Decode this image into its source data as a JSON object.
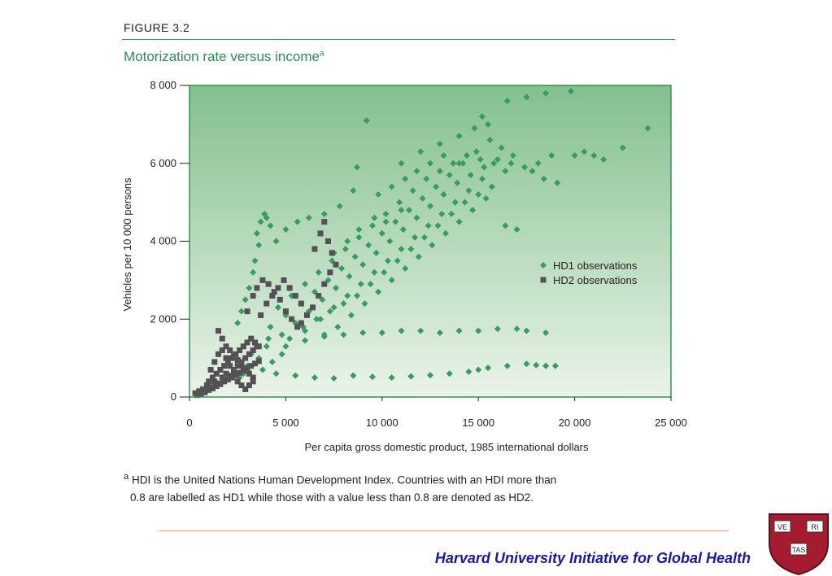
{
  "figure": {
    "label": "FIGURE 3.2",
    "title": "Motorization rate versus income",
    "title_marker": "a"
  },
  "footnote": {
    "marker": "a",
    "line1": "HDI is the United Nations Human Development Index. Countries with an HDI more than",
    "line2": "0.8 are labelled as HD1 while those with a value less than 0.8 are denoted as HD2."
  },
  "brand": "Harvard University Initiative for Global Health",
  "logo": {
    "shield_words": [
      "VE",
      "RI",
      "TAS"
    ]
  },
  "colors": {
    "hd1": "#3a9a62",
    "hd2": "#555055",
    "plot_bg_top": "#82c08e",
    "plot_bg_bottom": "#eaf4e8",
    "frame": "#3a8f5c"
  },
  "chart_data": {
    "type": "scatter",
    "xlabel": "Per capita gross domestic product, 1985 international dollars",
    "ylabel": "Vehicles per 10 000 persons",
    "xlim": [
      0,
      25000
    ],
    "ylim": [
      0,
      8000
    ],
    "xticks": [
      0,
      5000,
      10000,
      15000,
      20000,
      25000
    ],
    "xtick_labels": [
      "0",
      "5 000",
      "10 000",
      "15 000",
      "20 000",
      "25 000"
    ],
    "yticks": [
      0,
      2000,
      4000,
      6000,
      8000
    ],
    "ytick_labels": [
      "0",
      "2 000",
      "4 000",
      "6 000",
      "8 000"
    ],
    "grid": false,
    "legend_position": "right-middle",
    "series": [
      {
        "name": "HD1 observations",
        "marker": "diamond",
        "points": [
          [
            3500,
            4200
          ],
          [
            3700,
            4500
          ],
          [
            3900,
            4700
          ],
          [
            4000,
            4600
          ],
          [
            4200,
            4400
          ],
          [
            3600,
            3900
          ],
          [
            3400,
            3500
          ],
          [
            3300,
            3200
          ],
          [
            3100,
            2800
          ],
          [
            2900,
            2500
          ],
          [
            2700,
            2200
          ],
          [
            2500,
            1900
          ],
          [
            4500,
            4000
          ],
          [
            5000,
            4300
          ],
          [
            5600,
            4500
          ],
          [
            6200,
            4600
          ],
          [
            7000,
            4700
          ],
          [
            7800,
            4900
          ],
          [
            8500,
            5300
          ],
          [
            9200,
            7100
          ],
          [
            8700,
            5900
          ],
          [
            4200,
            1800
          ],
          [
            5000,
            2100
          ],
          [
            5800,
            2400
          ],
          [
            6500,
            2700
          ],
          [
            7200,
            3000
          ],
          [
            7900,
            3300
          ],
          [
            8600,
            3600
          ],
          [
            9300,
            3900
          ],
          [
            10000,
            4200
          ],
          [
            10700,
            4500
          ],
          [
            11400,
            4800
          ],
          [
            12100,
            5100
          ],
          [
            12800,
            5400
          ],
          [
            13500,
            5700
          ],
          [
            14200,
            6000
          ],
          [
            14900,
            6300
          ],
          [
            15600,
            6600
          ],
          [
            15200,
            7200
          ],
          [
            16500,
            7600
          ],
          [
            17500,
            7700
          ],
          [
            18500,
            7800
          ],
          [
            19800,
            7850
          ],
          [
            21000,
            6200
          ],
          [
            4800,
            1600
          ],
          [
            5500,
            1900
          ],
          [
            6200,
            2200
          ],
          [
            6900,
            2500
          ],
          [
            7600,
            2800
          ],
          [
            8300,
            3100
          ],
          [
            9000,
            3400
          ],
          [
            9700,
            3700
          ],
          [
            10400,
            4000
          ],
          [
            11100,
            4300
          ],
          [
            11800,
            4600
          ],
          [
            12500,
            4900
          ],
          [
            13200,
            5200
          ],
          [
            13900,
            5500
          ],
          [
            14600,
            5700
          ],
          [
            15300,
            5900
          ],
          [
            16000,
            6100
          ],
          [
            16700,
            6000
          ],
          [
            17400,
            5900
          ],
          [
            18100,
            6000
          ],
          [
            18800,
            6200
          ],
          [
            19100,
            5500
          ],
          [
            4600,
            2300
          ],
          [
            5300,
            2600
          ],
          [
            6000,
            2900
          ],
          [
            6700,
            3200
          ],
          [
            7400,
            3500
          ],
          [
            8100,
            3800
          ],
          [
            8800,
            4100
          ],
          [
            9500,
            4400
          ],
          [
            10200,
            4700
          ],
          [
            10900,
            5000
          ],
          [
            11600,
            5300
          ],
          [
            12300,
            5600
          ],
          [
            13000,
            5800
          ],
          [
            13700,
            6000
          ],
          [
            14400,
            6200
          ],
          [
            15100,
            6100
          ],
          [
            15800,
            6000
          ],
          [
            16400,
            5800
          ],
          [
            5200,
            1500
          ],
          [
            5900,
            1800
          ],
          [
            6600,
            2000
          ],
          [
            7300,
            2200
          ],
          [
            8000,
            2400
          ],
          [
            8700,
            2600
          ],
          [
            9400,
            2900
          ],
          [
            10100,
            3200
          ],
          [
            10800,
            3500
          ],
          [
            11500,
            3800
          ],
          [
            12200,
            4100
          ],
          [
            12900,
            4400
          ],
          [
            13600,
            4700
          ],
          [
            14300,
            5000
          ],
          [
            15000,
            5200
          ],
          [
            15700,
            5400
          ],
          [
            16400,
            4400
          ],
          [
            17000,
            4300
          ],
          [
            6000,
            1700
          ],
          [
            6800,
            2000
          ],
          [
            7500,
            2300
          ],
          [
            8200,
            2600
          ],
          [
            8900,
            2900
          ],
          [
            9600,
            3200
          ],
          [
            10300,
            3500
          ],
          [
            11000,
            3800
          ],
          [
            11700,
            4100
          ],
          [
            12400,
            4400
          ],
          [
            13100,
            4700
          ],
          [
            13800,
            5000
          ],
          [
            14500,
            5300
          ],
          [
            15200,
            5600
          ],
          [
            7000,
            1600
          ],
          [
            7700,
            1800
          ],
          [
            8400,
            2100
          ],
          [
            9100,
            2400
          ],
          [
            9800,
            2700
          ],
          [
            10500,
            3000
          ],
          [
            11200,
            3300
          ],
          [
            11900,
            3600
          ],
          [
            12600,
            3900
          ],
          [
            13300,
            4200
          ],
          [
            14000,
            4500
          ],
          [
            14700,
            4800
          ],
          [
            15400,
            5100
          ],
          [
            5000,
            1300
          ],
          [
            6000,
            1450
          ],
          [
            7000,
            1550
          ],
          [
            8000,
            1600
          ],
          [
            9000,
            1650
          ],
          [
            10000,
            1650
          ],
          [
            11000,
            1700
          ],
          [
            12000,
            1700
          ],
          [
            13000,
            1650
          ],
          [
            14000,
            1700
          ],
          [
            15000,
            1700
          ],
          [
            16000,
            1750
          ],
          [
            17000,
            1750
          ],
          [
            17500,
            1700
          ],
          [
            18500,
            1650
          ],
          [
            4500,
            600
          ],
          [
            5500,
            550
          ],
          [
            6500,
            500
          ],
          [
            7500,
            480
          ],
          [
            8500,
            550
          ],
          [
            9500,
            520
          ],
          [
            10500,
            500
          ],
          [
            11500,
            530
          ],
          [
            12500,
            560
          ],
          [
            13500,
            600
          ],
          [
            14500,
            650
          ],
          [
            15000,
            700
          ],
          [
            15500,
            750
          ],
          [
            16500,
            800
          ],
          [
            17500,
            850
          ],
          [
            18000,
            820
          ],
          [
            18500,
            800
          ],
          [
            19000,
            800
          ],
          [
            3800,
            700
          ],
          [
            4300,
            900
          ],
          [
            4800,
            1100
          ],
          [
            3600,
            1000
          ],
          [
            4000,
            1300
          ],
          [
            3200,
            1100
          ],
          [
            3000,
            800
          ],
          [
            2800,
            600
          ],
          [
            2600,
            500
          ],
          [
            4100,
            1500
          ],
          [
            11000,
            6000
          ],
          [
            12000,
            6300
          ],
          [
            13000,
            6500
          ],
          [
            14000,
            6700
          ],
          [
            14800,
            6900
          ],
          [
            15500,
            7000
          ],
          [
            16200,
            6400
          ],
          [
            16800,
            6200
          ],
          [
            17800,
            5800
          ],
          [
            18400,
            5600
          ],
          [
            20000,
            6200
          ],
          [
            21500,
            6100
          ],
          [
            22500,
            6400
          ],
          [
            23800,
            6900
          ],
          [
            20500,
            6300
          ],
          [
            9800,
            5200
          ],
          [
            10500,
            5400
          ],
          [
            11200,
            5600
          ],
          [
            11800,
            5800
          ],
          [
            12500,
            6000
          ],
          [
            13200,
            6200
          ],
          [
            14000,
            6000
          ],
          [
            10200,
            4500
          ],
          [
            11000,
            4800
          ],
          [
            9600,
            4600
          ],
          [
            8800,
            4300
          ],
          [
            8200,
            4000
          ],
          [
            7500,
            3700
          ]
        ]
      },
      {
        "name": "HD2 observations",
        "marker": "square",
        "points": [
          [
            300,
            100
          ],
          [
            500,
            150
          ],
          [
            700,
            200
          ],
          [
            900,
            300
          ],
          [
            1100,
            250
          ],
          [
            1300,
            400
          ],
          [
            1500,
            350
          ],
          [
            1700,
            500
          ],
          [
            1900,
            600
          ],
          [
            2100,
            550
          ],
          [
            2300,
            700
          ],
          [
            2500,
            800
          ],
          [
            2700,
            900
          ],
          [
            2900,
            1000
          ],
          [
            3100,
            1100
          ],
          [
            3300,
            1200
          ],
          [
            3500,
            1300
          ],
          [
            400,
            50
          ],
          [
            600,
            80
          ],
          [
            800,
            120
          ],
          [
            1000,
            180
          ],
          [
            1200,
            220
          ],
          [
            1400,
            280
          ],
          [
            1600,
            330
          ],
          [
            1800,
            400
          ],
          [
            2000,
            450
          ],
          [
            2200,
            500
          ],
          [
            2400,
            560
          ],
          [
            2600,
            620
          ],
          [
            2800,
            680
          ],
          [
            3000,
            740
          ],
          [
            3200,
            800
          ],
          [
            3400,
            860
          ],
          [
            3600,
            920
          ],
          [
            1000,
            400
          ],
          [
            1200,
            500
          ],
          [
            1400,
            600
          ],
          [
            1600,
            700
          ],
          [
            1800,
            800
          ],
          [
            2000,
            900
          ],
          [
            2200,
            1000
          ],
          [
            2400,
            1100
          ],
          [
            2600,
            1200
          ],
          [
            2800,
            1300
          ],
          [
            3000,
            1400
          ],
          [
            3200,
            1500
          ],
          [
            3400,
            1400
          ],
          [
            3600,
            1300
          ],
          [
            1500,
            1700
          ],
          [
            1700,
            1500
          ],
          [
            1900,
            1300
          ],
          [
            2100,
            1200
          ],
          [
            2300,
            1050
          ],
          [
            2500,
            950
          ],
          [
            2700,
            800
          ],
          [
            2900,
            700
          ],
          [
            3100,
            600
          ],
          [
            3300,
            500
          ],
          [
            3000,
            2200
          ],
          [
            3300,
            2600
          ],
          [
            3500,
            2800
          ],
          [
            3800,
            3000
          ],
          [
            4100,
            2900
          ],
          [
            4400,
            2700
          ],
          [
            4700,
            2500
          ],
          [
            5000,
            2200
          ],
          [
            5300,
            2000
          ],
          [
            5600,
            1800
          ],
          [
            6500,
            3800
          ],
          [
            6800,
            4200
          ],
          [
            7000,
            4500
          ],
          [
            7200,
            4000
          ],
          [
            7400,
            3700
          ],
          [
            7600,
            3400
          ],
          [
            7300,
            3200
          ],
          [
            7000,
            2900
          ],
          [
            6700,
            2600
          ],
          [
            6400,
            2300
          ],
          [
            6100,
            2100
          ],
          [
            5800,
            1900
          ],
          [
            3700,
            2100
          ],
          [
            4000,
            2400
          ],
          [
            4300,
            2600
          ],
          [
            4600,
            2800
          ],
          [
            4900,
            3000
          ],
          [
            5200,
            2800
          ],
          [
            5500,
            2600
          ],
          [
            5800,
            2400
          ],
          [
            1100,
            700
          ],
          [
            1300,
            900
          ],
          [
            1500,
            1100
          ],
          [
            1700,
            1200
          ],
          [
            1900,
            1000
          ],
          [
            2100,
            800
          ],
          [
            2300,
            600
          ],
          [
            2500,
            400
          ],
          [
            2700,
            300
          ],
          [
            2900,
            200
          ],
          [
            3100,
            300
          ],
          [
            3300,
            400
          ]
        ]
      }
    ]
  }
}
